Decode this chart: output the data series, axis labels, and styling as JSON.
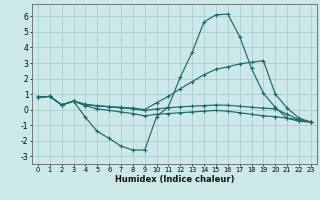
{
  "xlabel": "Humidex (Indice chaleur)",
  "xlim": [
    -0.5,
    23.5
  ],
  "ylim": [
    -3.5,
    6.8
  ],
  "yticks": [
    -3,
    -2,
    -1,
    0,
    1,
    2,
    3,
    4,
    5,
    6
  ],
  "xticks": [
    0,
    1,
    2,
    3,
    4,
    5,
    6,
    7,
    8,
    9,
    10,
    11,
    12,
    13,
    14,
    15,
    16,
    17,
    18,
    19,
    20,
    21,
    22,
    23
  ],
  "background_color": "#cce8e8",
  "grid_color": "#aacece",
  "line_color": "#1a6b6b",
  "lines": [
    {
      "x": [
        0,
        1,
        2,
        3,
        4,
        5,
        6,
        7,
        8,
        9,
        10,
        11,
        12,
        13,
        14,
        15,
        16,
        17,
        18,
        19,
        20,
        21,
        22,
        23
      ],
      "y": [
        0.8,
        0.85,
        0.3,
        0.55,
        -0.5,
        -1.4,
        -1.85,
        -2.35,
        -2.6,
        -2.6,
        -0.45,
        0.2,
        2.1,
        3.7,
        5.65,
        6.1,
        6.15,
        4.7,
        2.65,
        1.05,
        0.15,
        -0.55,
        -0.75,
        -0.8
      ]
    },
    {
      "x": [
        0,
        1,
        2,
        3,
        4,
        5,
        6,
        7,
        8,
        9,
        10,
        11,
        12,
        13,
        14,
        15,
        16,
        17,
        18,
        19,
        20,
        21,
        22,
        23
      ],
      "y": [
        0.8,
        0.85,
        0.3,
        0.55,
        0.3,
        0.25,
        0.2,
        0.15,
        0.1,
        0.0,
        0.45,
        0.85,
        1.35,
        1.8,
        2.25,
        2.6,
        2.75,
        2.95,
        3.05,
        3.15,
        1.0,
        0.1,
        -0.55,
        -0.8
      ]
    },
    {
      "x": [
        0,
        1,
        2,
        3,
        4,
        5,
        6,
        7,
        8,
        9,
        10,
        11,
        12,
        13,
        14,
        15,
        16,
        17,
        18,
        19,
        20,
        21,
        22,
        23
      ],
      "y": [
        0.8,
        0.85,
        0.3,
        0.55,
        0.25,
        0.05,
        -0.05,
        -0.15,
        -0.25,
        -0.4,
        -0.3,
        -0.25,
        -0.2,
        -0.15,
        -0.1,
        -0.05,
        -0.1,
        -0.2,
        -0.3,
        -0.4,
        -0.45,
        -0.55,
        -0.65,
        -0.8
      ]
    },
    {
      "x": [
        0,
        1,
        2,
        3,
        4,
        5,
        6,
        7,
        8,
        9,
        10,
        11,
        12,
        13,
        14,
        15,
        16,
        17,
        18,
        19,
        20,
        21,
        22,
        23
      ],
      "y": [
        0.8,
        0.85,
        0.3,
        0.55,
        0.35,
        0.25,
        0.18,
        0.12,
        0.05,
        -0.05,
        0.05,
        0.12,
        0.18,
        0.22,
        0.26,
        0.3,
        0.28,
        0.22,
        0.15,
        0.1,
        0.05,
        -0.3,
        -0.65,
        -0.8
      ]
    }
  ]
}
